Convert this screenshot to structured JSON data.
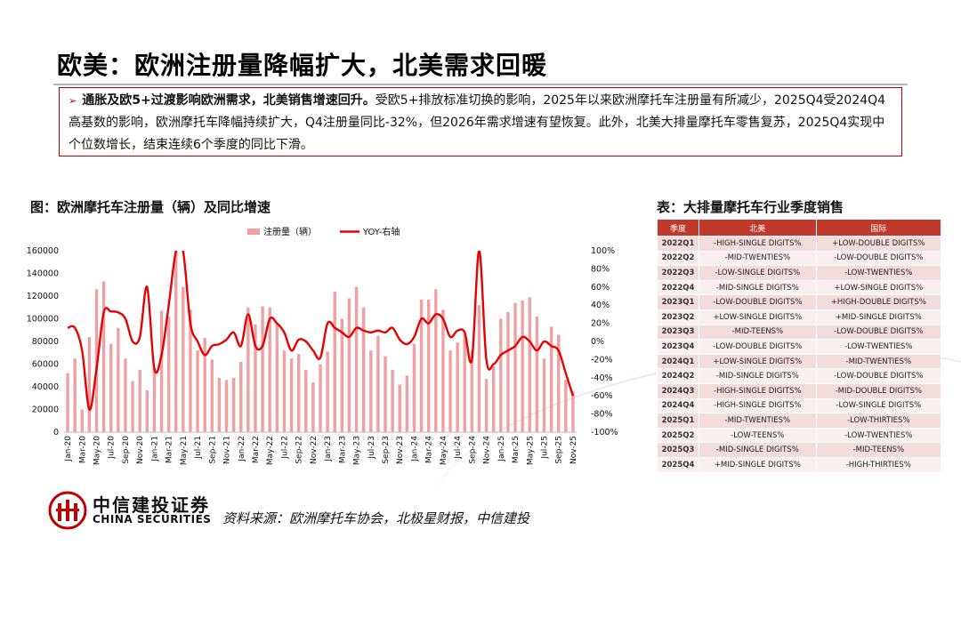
{
  "title": "欧美：欧洲注册量降幅扩大，北美需求回暖",
  "summary": {
    "bold": "通胀及欧5+过渡影响欧洲需求，北美销售增速回升。",
    "text": "受欧5+排放标准切换的影响，2025年以来欧洲摩托车注册量有所减少，2025Q4受2024Q4高基数的影响，欧洲摩托车降幅持续扩大，Q4注册量同比-32%，但2026年需求增速有望恢复。此外，北美大排量摩托车零售复苏，2025Q4实现中个位数增长，结束连续6个季度的同比下滑。"
  },
  "chart_title": "图：欧洲摩托车注册量（辆）及同比增速",
  "table_title": "表：大排量摩托车行业季度销售",
  "colors": {
    "bar": "#f0a0a0",
    "line": "#e60000",
    "accent": "#c00000",
    "table_header": "#c0392b"
  },
  "chart_data": {
    "type": "bar",
    "title": "",
    "series": [
      {
        "name": "注册量（辆）",
        "type": "bar",
        "values": [
          52000,
          65000,
          20000,
          84000,
          126000,
          133000,
          78000,
          92000,
          65000,
          45000,
          55000,
          37000,
          56000,
          107000,
          102000,
          160000,
          128000,
          108000,
          72000,
          83000,
          64000,
          48000,
          46000,
          48000,
          62000,
          110000,
          95000,
          111000,
          110000,
          96000,
          72000,
          65000,
          69000,
          55000,
          44000,
          60000,
          71000,
          124000,
          100000,
          118000,
          128000,
          110000,
          72000,
          85000,
          67000,
          55000,
          42000,
          50000,
          78000,
          117000,
          117000,
          126000,
          108000,
          72000,
          79000,
          86000,
          72000,
          112000,
          47000,
          58000,
          100000,
          106000,
          114000,
          116000,
          119000,
          102000,
          65000,
          93000,
          86000,
          46000,
          36000
        ]
      },
      {
        "name": "YOY-右轴",
        "type": "line",
        "axis": "right",
        "values": [
          15,
          15,
          -10,
          -75,
          -30,
          32,
          33,
          32,
          25,
          0,
          5,
          60,
          -30,
          -15,
          40,
          99,
          99,
          20,
          0,
          -15,
          -5,
          -3,
          2,
          10,
          -5,
          30,
          -5,
          -5,
          25,
          20,
          10,
          -10,
          2,
          0,
          -10,
          -18,
          20,
          15,
          10,
          5,
          15,
          12,
          10,
          12,
          10,
          15,
          2,
          -3,
          5,
          25,
          20,
          30,
          25,
          5,
          12,
          10,
          -20,
          100,
          -20,
          -25,
          -15,
          -10,
          -5,
          5,
          0,
          -10,
          0,
          -5,
          -10,
          -35,
          -60
        ]
      }
    ],
    "x": [
      "Jan-20",
      "Feb-20",
      "Mar-20",
      "Apr-20",
      "May-20",
      "Jun-20",
      "Jul-20",
      "Aug-20",
      "Sep-20",
      "Oct-20",
      "Nov-20",
      "Dec-20",
      "Jan-21",
      "Feb-21",
      "Mar-21",
      "Apr-21",
      "May-21",
      "Jun-21",
      "Jul-21",
      "Aug-21",
      "Sep-21",
      "Oct-21",
      "Nov-21",
      "Dec-21",
      "Jan-22",
      "Feb-22",
      "Mar-22",
      "Apr-22",
      "May-22",
      "Jun-22",
      "Jul-22",
      "Aug-22",
      "Sep-22",
      "Oct-22",
      "Nov-22",
      "Dec-22",
      "Jan-23",
      "Feb-23",
      "Mar-23",
      "Apr-23",
      "May-23",
      "Jun-23",
      "Jul-23",
      "Aug-23",
      "Sep-23",
      "Oct-23",
      "Nov-23",
      "Dec-23",
      "Jan-24",
      "Feb-24",
      "Mar-24",
      "Apr-24",
      "May-24",
      "Jun-24",
      "Jul-24",
      "Aug-24",
      "Sep-24",
      "Oct-24",
      "Nov-24",
      "Dec-24",
      "Jan-25",
      "Feb-25",
      "Mar-25",
      "Apr-25",
      "May-25",
      "Jun-25",
      "Jul-25",
      "Aug-25",
      "Sep-25",
      "Oct-25",
      "Nov-25"
    ],
    "x_tick_labels": [
      "Jan-20",
      "Mar-20",
      "May-20",
      "Jul-20",
      "Sep-20",
      "Nov-20",
      "Jan-21",
      "Mar-21",
      "May-21",
      "Jul-21",
      "Sep-21",
      "Nov-21",
      "Jan-22",
      "Mar-22",
      "May-22",
      "Jul-22",
      "Sep-22",
      "Nov-22",
      "Jan-23",
      "Mar-23",
      "May-23",
      "Jul-23",
      "Sep-23",
      "Nov-23",
      "Jan-24",
      "Mar-24",
      "May-24",
      "Jul-24",
      "Sep-24",
      "Nov-24",
      "Jan-25",
      "Mar-25",
      "May-25",
      "Jul-25",
      "Sep-25",
      "Nov-25"
    ],
    "y_left": {
      "min": 0,
      "max": 160000,
      "ticks": [
        "0",
        "20000",
        "40000",
        "60000",
        "80000",
        "100000",
        "120000",
        "140000",
        "160000"
      ]
    },
    "y_right": {
      "min": -100,
      "max": 100,
      "ticks": [
        "-100%",
        "-80%",
        "-60%",
        "-40%",
        "-20%",
        "0%",
        "20%",
        "40%",
        "60%",
        "80%",
        "100%"
      ]
    },
    "grid": false,
    "legend": "top-center"
  },
  "table": {
    "headers": [
      "季度",
      "北美",
      "国际"
    ],
    "rows": [
      [
        "2022Q1",
        "-HIGH-SINGLE DIGITS%",
        "+LOW-DOUBLE DIGITS%"
      ],
      [
        "2022Q2",
        "-MID-TWENTIES%",
        "-LOW-DOUBLE DIGITS%"
      ],
      [
        "2022Q3",
        "-LOW-SINGLE DIGITS%",
        "-LOW-TWENTIES%"
      ],
      [
        "2022Q4",
        "-MID-SINGLE DIGITS%",
        "+LOW-SINGLE DIGITS%"
      ],
      [
        "2023Q1",
        "-LOW-DOUBLE DIGITS%",
        "+HIGH-DOUBLE DIGITS%"
      ],
      [
        "2023Q2",
        "+LOW-SINGLE DIGITS%",
        "+MID-SINGLE DIGITS%"
      ],
      [
        "2023Q3",
        "-MID-TEENS%",
        "-LOW-DOUBLE DIGITS%"
      ],
      [
        "2023Q4",
        "-LOW-DOUBLE DIGITS%",
        "-LOW-TWENTIES%"
      ],
      [
        "2024Q1",
        "+LOW-SINGLE DIGITS%",
        "-MID-TWENTIES%"
      ],
      [
        "2024Q2",
        "-MID-SINGLE DIGITS%",
        "-LOW-DOUBLE DIGITS%"
      ],
      [
        "2024Q3",
        "-HIGH-SINGLE DIGITS%",
        "-MID-DOUBLE DIGITS%"
      ],
      [
        "2024Q4",
        "-HIGH-SINGLE DIGITS%",
        "-LOW-SINGLE DIGITS%"
      ],
      [
        "2025Q1",
        "-MID-TWENTIES%",
        "-LOW-THIRTIES%"
      ],
      [
        "2025Q2",
        "-LOW-TEENS%",
        "-LOW-TWENTIES%"
      ],
      [
        "2025Q3",
        "-MID-SINGLE DIGITS%",
        "-MID-TEENS%"
      ],
      [
        "2025Q4",
        "+MID-SINGLE DIGITS%",
        "-HIGH-THIRTIES%"
      ]
    ]
  },
  "footer": {
    "logo_cn": "中信建投证券",
    "logo_en": "CHINA SECURITIES",
    "source": "资料来源：欧洲摩托车协会，北极星财报，中信建投"
  }
}
